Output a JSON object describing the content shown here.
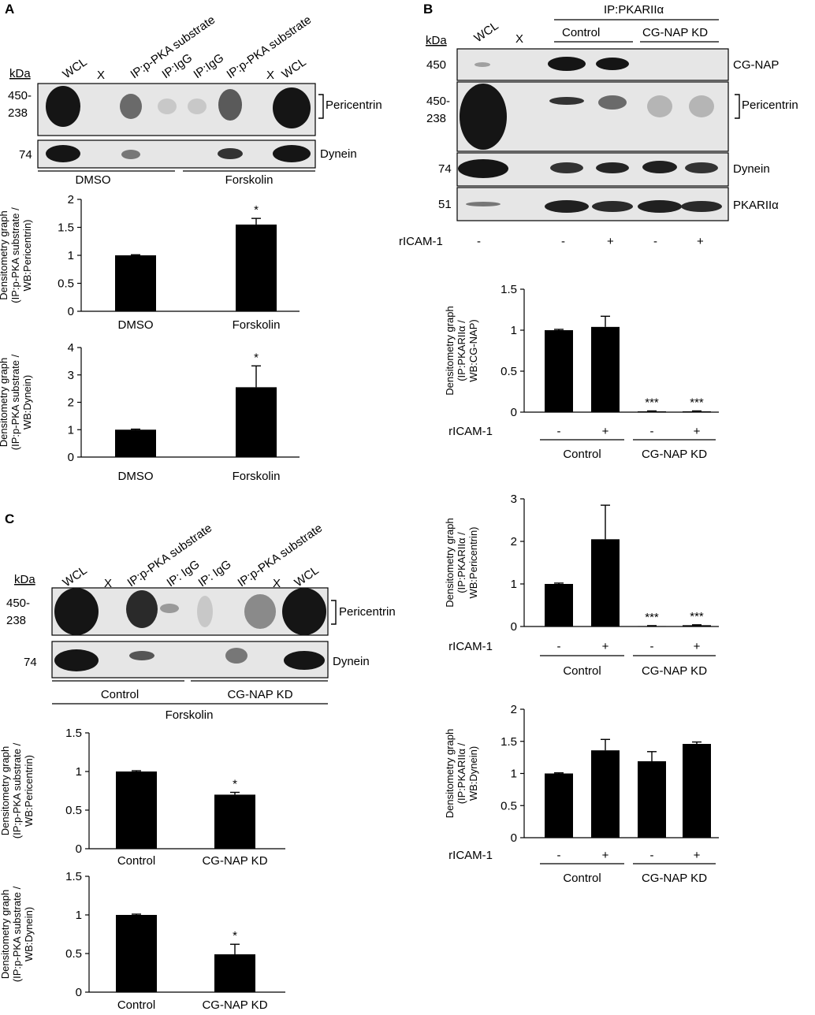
{
  "panels": {
    "A": {
      "letter": "A",
      "kda_label": "kDa",
      "lanes": [
        "WCL",
        "X",
        "IP:p-PKA substrate",
        "IP:IgG",
        "IP:IgG",
        "IP:p-PKA substrate",
        "X",
        "WCL"
      ],
      "blot_rows": [
        {
          "mw": "450-\n238",
          "label": "Pericentrin"
        },
        {
          "mw": "74",
          "label": "Dynein"
        }
      ],
      "treatments": [
        "DMSO",
        "Forskolin"
      ]
    },
    "B": {
      "letter": "B",
      "kda_label": "kDa",
      "ip_label": "IP:PKARIIα",
      "lanes": [
        "WCL",
        "X"
      ],
      "groups": [
        "Control",
        "CG-NAP KD"
      ],
      "blot_rows": [
        {
          "mw": "450",
          "label": "CG-NAP"
        },
        {
          "mw": "450-\n238",
          "label": "Pericentrin"
        },
        {
          "mw": "74",
          "label": "Dynein"
        },
        {
          "mw": "51",
          "label": "PKARIIα"
        }
      ],
      "ricam_label": "rICAM-1",
      "ricam_signs": [
        "-",
        "-",
        "+",
        "-",
        "+"
      ]
    },
    "C": {
      "letter": "C",
      "kda_label": "kDa",
      "lanes": [
        "WCL",
        "X",
        "IP:p-PKA substrate",
        "IP: IgG",
        "IP: IgG",
        "IP:p-PKA substrate",
        "X",
        "WCL"
      ],
      "blot_rows": [
        {
          "mw": "450-\n238",
          "label": "Pericentrin"
        },
        {
          "mw": "74",
          "label": "Dynein"
        }
      ],
      "groups": [
        "Control",
        "CG-NAP KD"
      ],
      "treatment": "Forskolin"
    }
  },
  "colors": {
    "bar": "#000000",
    "blot_bg": "#e6e6e6",
    "band": "#151515"
  },
  "chart_data": [
    {
      "id": "A1",
      "type": "bar",
      "categories": [
        "DMSO",
        "Forskolin"
      ],
      "values": [
        1.0,
        1.55
      ],
      "errors": [
        0.01,
        0.11
      ],
      "significance": [
        "",
        "*"
      ],
      "ylabel": "Densitometry graph\n(IP:p-PKA substrate /\nWB:Pericentrin)",
      "ylim": [
        0,
        2
      ],
      "yticks": [
        0,
        0.5,
        1,
        1.5,
        2
      ],
      "ytick_labels": [
        "0",
        "0.5",
        "1",
        "1.5",
        "2"
      ]
    },
    {
      "id": "A2",
      "type": "bar",
      "categories": [
        "DMSO",
        "Forskolin"
      ],
      "values": [
        1.0,
        2.55
      ],
      "errors": [
        0.02,
        0.78
      ],
      "significance": [
        "",
        "*"
      ],
      "ylabel": "Densitometry graph\n(IP:p-PKA substrate /\nWB:Dynein)",
      "ylim": [
        0,
        4
      ],
      "yticks": [
        0,
        1,
        2,
        3,
        4
      ],
      "ytick_labels": [
        "0",
        "1",
        "2",
        "3",
        "4"
      ]
    },
    {
      "id": "B1",
      "type": "bar",
      "categories": [
        "-",
        "+",
        "-",
        "+"
      ],
      "groups": [
        "Control",
        "CG-NAP KD"
      ],
      "group_label": "rICAM-1",
      "values": [
        1.0,
        1.04,
        0.01,
        0.01
      ],
      "errors": [
        0.01,
        0.13,
        0.005,
        0.005
      ],
      "significance": [
        "",
        "",
        "***",
        "***"
      ],
      "ylabel": "Densitometry graph\n(IP:PKARIIα /\nWB:CG-NAP)",
      "ylim": [
        0,
        1.5
      ],
      "yticks": [
        0,
        0.5,
        1,
        1.5
      ],
      "ytick_labels": [
        "0",
        "0.5",
        "1",
        "1.5"
      ]
    },
    {
      "id": "B2",
      "type": "bar",
      "categories": [
        "-",
        "+",
        "-",
        "+"
      ],
      "groups": [
        "Control",
        "CG-NAP KD"
      ],
      "group_label": "rICAM-1",
      "values": [
        1.0,
        2.05,
        0.01,
        0.03
      ],
      "errors": [
        0.02,
        0.8,
        0.01,
        0.01
      ],
      "significance": [
        "",
        "",
        "***",
        "***"
      ],
      "ylabel": "Densitometry graph\n(IP:PKARIIα /\nWB:Pericentrin)",
      "ylim": [
        0,
        3
      ],
      "yticks": [
        0,
        1,
        2,
        3
      ],
      "ytick_labels": [
        "0",
        "1",
        "2",
        "3"
      ]
    },
    {
      "id": "B3",
      "type": "bar",
      "categories": [
        "-",
        "+",
        "-",
        "+"
      ],
      "groups": [
        "Control",
        "CG-NAP KD"
      ],
      "group_label": "rICAM-1",
      "values": [
        1.0,
        1.36,
        1.19,
        1.46
      ],
      "errors": [
        0.01,
        0.17,
        0.15,
        0.03
      ],
      "significance": [
        "",
        "",
        "",
        ""
      ],
      "ylabel": "Densitometry graph\n(IP:PKARIIα /\nWB:Dynein)",
      "ylim": [
        0,
        2
      ],
      "yticks": [
        0,
        0.5,
        1,
        1.5,
        2
      ],
      "ytick_labels": [
        "0",
        "0.5",
        "1",
        "1.5",
        "2"
      ]
    },
    {
      "id": "C1",
      "type": "bar",
      "categories": [
        "Control",
        "CG-NAP KD"
      ],
      "values": [
        1.0,
        0.7
      ],
      "errors": [
        0.01,
        0.03
      ],
      "significance": [
        "",
        "*"
      ],
      "ylabel": "Densitometry graph\n(IP:p-PKA substrate /\nWB:Pericentrin)",
      "ylim": [
        0,
        1.5
      ],
      "yticks": [
        0,
        0.5,
        1,
        1.5
      ],
      "ytick_labels": [
        "0",
        "0.5",
        "1",
        "1.5"
      ]
    },
    {
      "id": "C2",
      "type": "bar",
      "categories": [
        "Control",
        "CG-NAP KD"
      ],
      "values": [
        1.0,
        0.49
      ],
      "errors": [
        0.01,
        0.13
      ],
      "significance": [
        "",
        "*"
      ],
      "ylabel": "Densitometry graph\n(IP:p-PKA substrate /\nWB:Dynein)",
      "ylim": [
        0,
        1.5
      ],
      "yticks": [
        0,
        0.5,
        1,
        1.5
      ],
      "ytick_labels": [
        "0",
        "0.5",
        "1",
        "1.5"
      ]
    }
  ]
}
